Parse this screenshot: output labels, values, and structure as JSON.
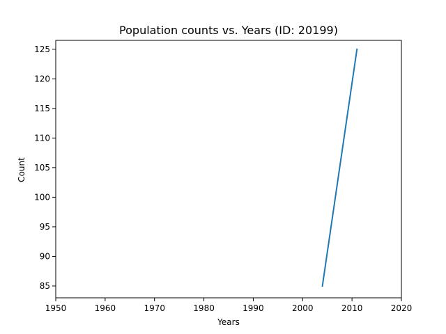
{
  "chart_data": {
    "type": "line",
    "title": "Population counts vs. Years (ID: 20199)",
    "xlabel": "Years",
    "ylabel": "Count",
    "xlim": [
      1950,
      2020
    ],
    "ylim": [
      83,
      126.5
    ],
    "xticks": [
      1950,
      1960,
      1970,
      1980,
      1990,
      2000,
      2010,
      2020
    ],
    "yticks": [
      85,
      90,
      95,
      100,
      105,
      110,
      115,
      120,
      125
    ],
    "grid": false,
    "series": [
      {
        "color": "#1f77b4",
        "x": [
          2004,
          2011
        ],
        "y": [
          85,
          125
        ]
      }
    ]
  }
}
